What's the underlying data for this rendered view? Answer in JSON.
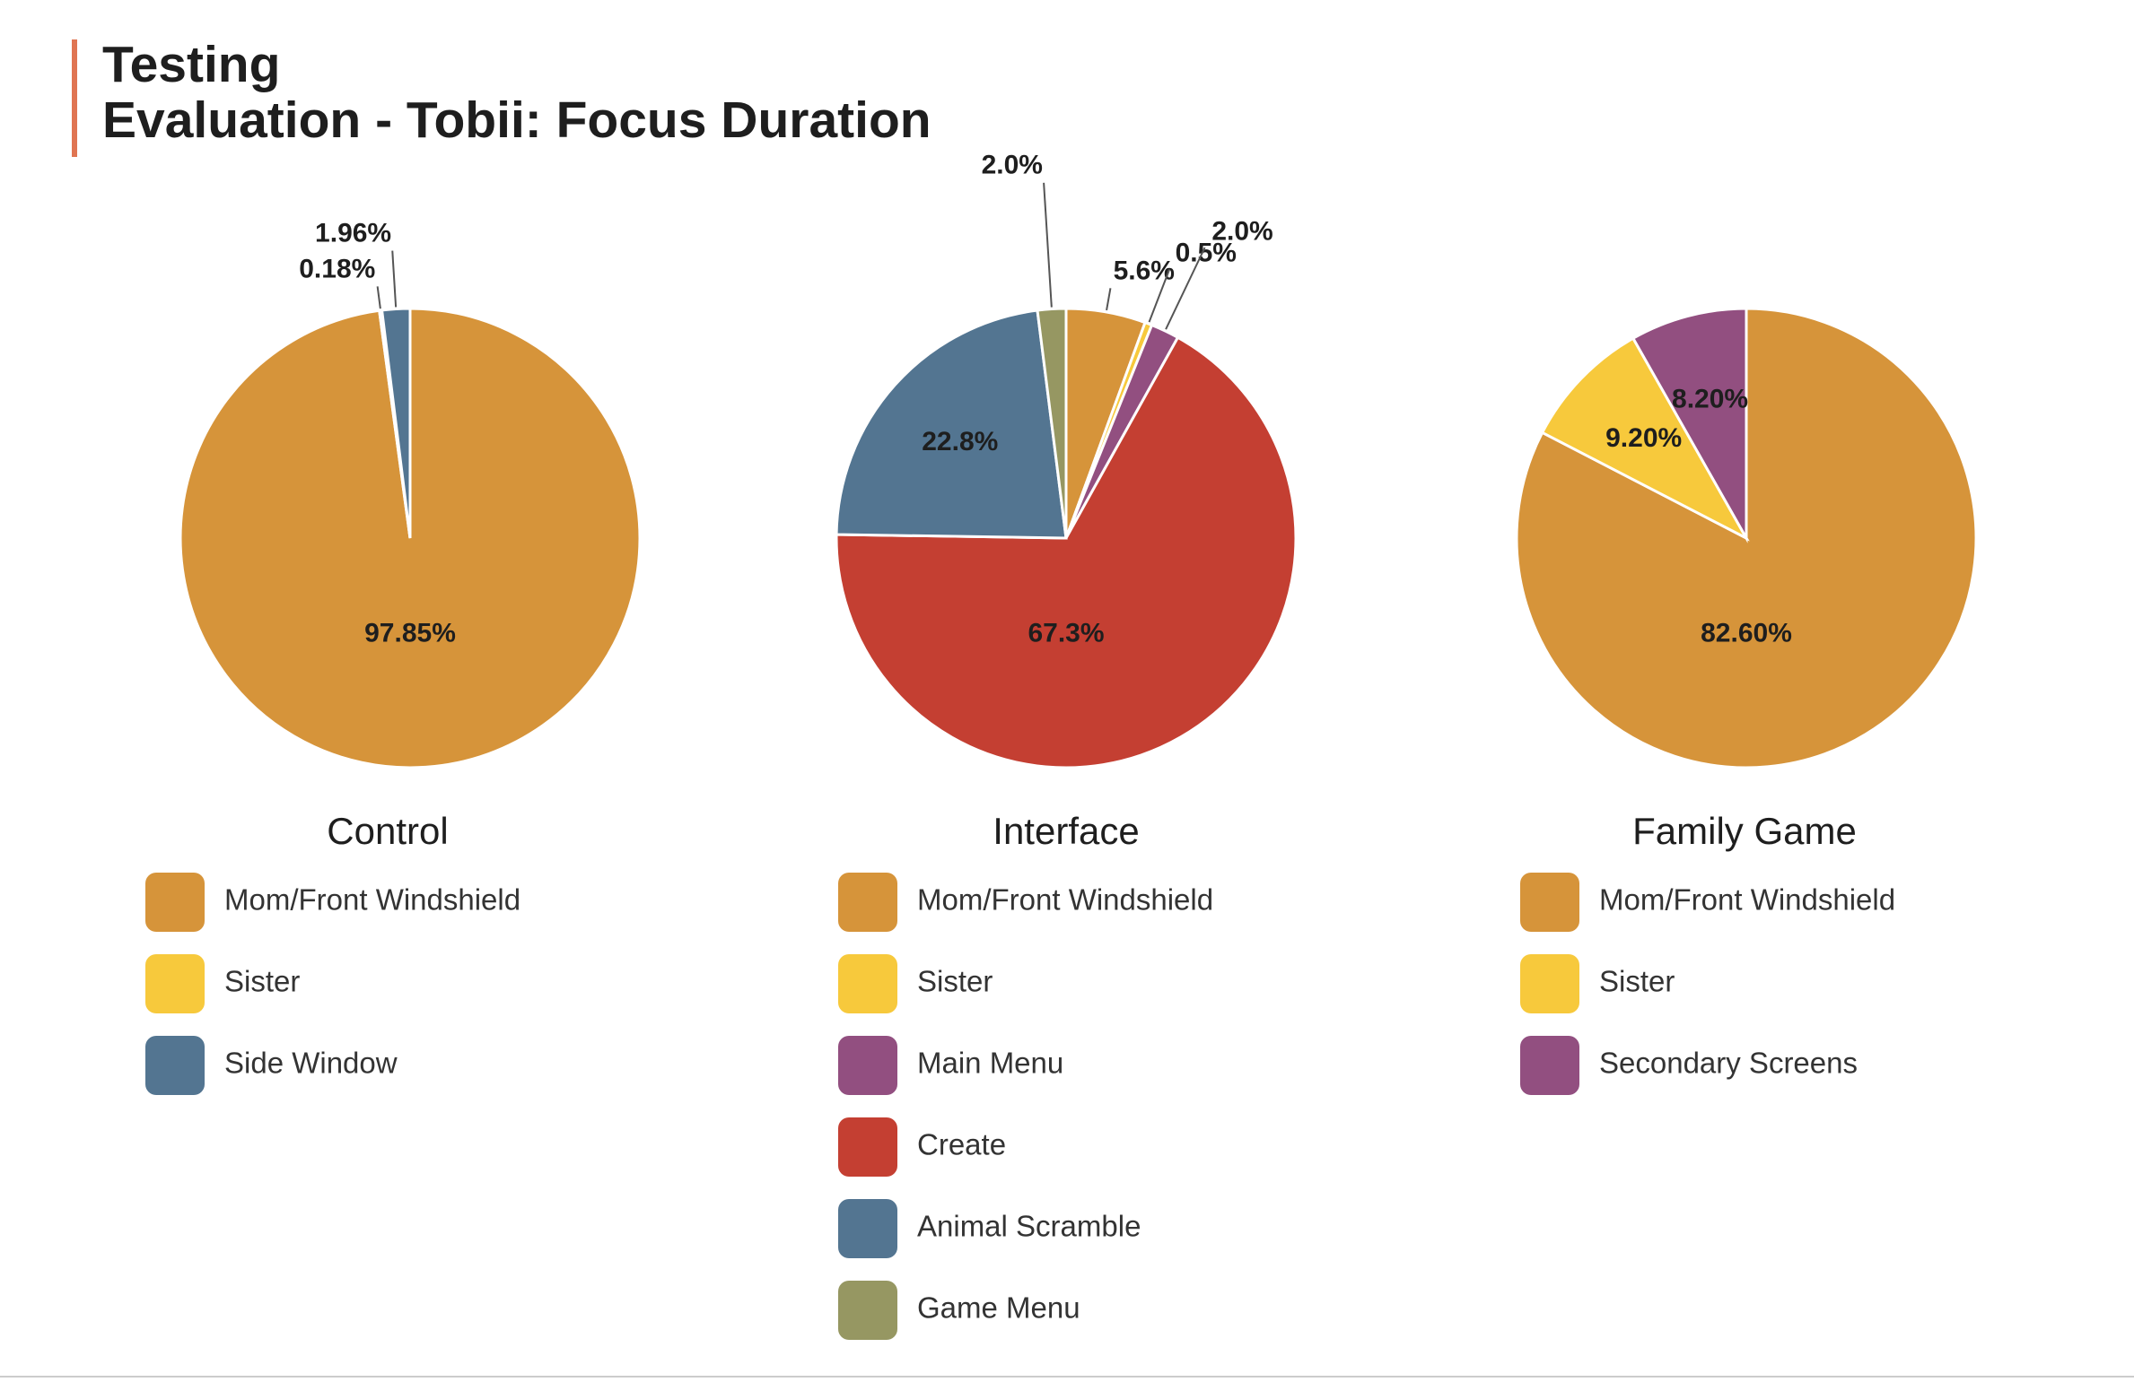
{
  "header": {
    "title_lines": [
      "Testing",
      "Evaluation - Tobii: Focus Duration"
    ]
  },
  "chart_data": [
    {
      "type": "pie",
      "title": "Control",
      "categories": [
        "Mom/Front Windshield",
        "Sister",
        "Side Window"
      ],
      "values": [
        97.85,
        0.18,
        1.96
      ],
      "value_labels": [
        "97.85%",
        "0.18%",
        "1.96%"
      ],
      "colors": [
        "#d6943a",
        "#f7c93c",
        "#537591"
      ]
    },
    {
      "type": "pie",
      "title": "Interface",
      "categories": [
        "Mom/Front Windshield",
        "Sister",
        "Main Menu",
        "Create",
        "Animal Scramble",
        "Game Menu"
      ],
      "values": [
        5.6,
        0.5,
        2.0,
        67.3,
        22.8,
        2.0
      ],
      "value_labels": [
        "5.6%",
        "0.5%",
        "2.0%",
        "67.3%",
        "22.8%",
        "2.0%"
      ],
      "colors": [
        "#d6943a",
        "#f7c93c",
        "#924f80",
        "#c43f32",
        "#537591",
        "#969762"
      ]
    },
    {
      "type": "pie",
      "title": "Family Game",
      "categories": [
        "Mom/Front Windshield",
        "Sister",
        "Secondary Screens"
      ],
      "values": [
        82.6,
        9.2,
        8.2
      ],
      "value_labels": [
        "82.60%",
        "9.20%",
        "8.20%"
      ],
      "colors": [
        "#d6943a",
        "#f7c93c",
        "#924f80"
      ]
    }
  ]
}
